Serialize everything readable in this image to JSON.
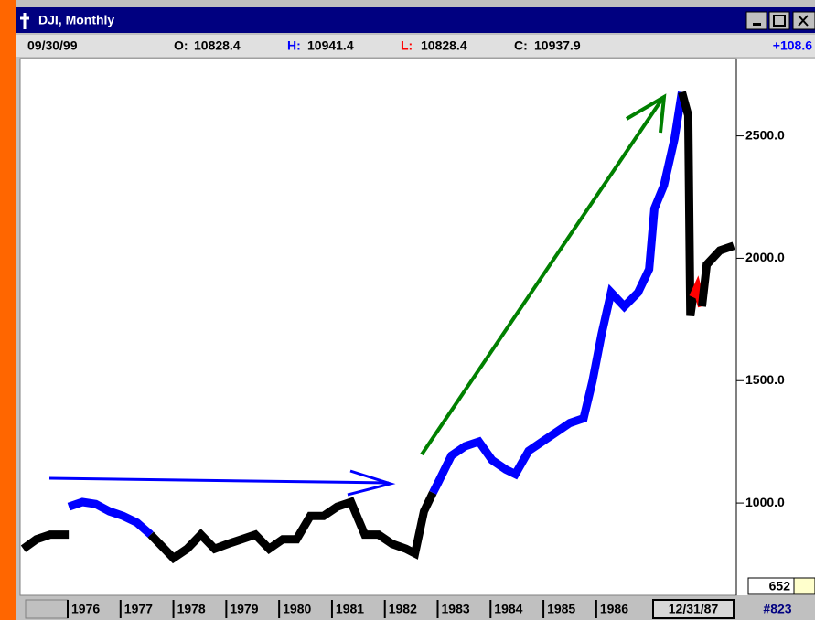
{
  "window": {
    "title": "DJI, Monthly",
    "info": {
      "date": "09/30/99",
      "fields": [
        {
          "label": "O:",
          "value": "10828.4",
          "color": "#000000"
        },
        {
          "label": "H:",
          "value": "10941.4",
          "color": "#0000ff"
        },
        {
          "label": "L:",
          "value": "10828.4",
          "color": "#ff0000"
        },
        {
          "label": "C:",
          "value": "10937.9",
          "color": "#000000"
        }
      ],
      "change": "+108.6"
    }
  },
  "chart_data": {
    "type": "line",
    "xlim": [
      1975.1,
      1988.65
    ],
    "xticks": [
      {
        "value": 1976,
        "label": "1976"
      },
      {
        "value": 1977,
        "label": "1977"
      },
      {
        "value": 1978,
        "label": "1978"
      },
      {
        "value": 1979,
        "label": "1979"
      },
      {
        "value": 1980,
        "label": "1980"
      },
      {
        "value": 1981,
        "label": "1981"
      },
      {
        "value": 1982,
        "label": "1982"
      },
      {
        "value": 1983,
        "label": "1983"
      },
      {
        "value": 1984,
        "label": "1984"
      },
      {
        "value": 1985,
        "label": "1985"
      },
      {
        "value": 1986,
        "label": "1986"
      }
    ],
    "ylim": [
      623,
      2816
    ],
    "yticks": [
      {
        "value": 1000,
        "label": "1000.0"
      },
      {
        "value": 1500,
        "label": "1500.0"
      },
      {
        "value": 2000,
        "label": "2000.0"
      },
      {
        "value": 2500,
        "label": "2500.0"
      }
    ],
    "series": [
      {
        "color": "#000000",
        "x": [
          1975.16,
          1975.41,
          1975.67,
          1976.02
        ],
        "values": [
          813,
          852,
          871,
          871
        ]
      },
      {
        "color": "#0000ff",
        "x": [
          1976.02,
          1976.28,
          1976.53,
          1976.79,
          1977.05,
          1977.31,
          1977.57
        ],
        "values": [
          985,
          1004,
          996,
          966,
          947,
          920,
          871
        ]
      },
      {
        "color": "#000000",
        "x": [
          1977.57,
          1977.74,
          1978.0,
          1978.26,
          1978.52,
          1978.78,
          1979.03,
          1979.29,
          1979.55,
          1979.81,
          1980.07,
          1980.33,
          1980.59,
          1980.84,
          1981.1,
          1981.36,
          1981.62,
          1981.88,
          1982.14,
          1982.4,
          1982.57,
          1982.74,
          1982.91
        ],
        "values": [
          871,
          833,
          775,
          813,
          871,
          813,
          833,
          852,
          871,
          813,
          852,
          852,
          947,
          947,
          985,
          1004,
          871,
          871,
          833,
          813,
          794,
          966,
          1042
        ]
      },
      {
        "color": "#0000ff",
        "x": [
          1982.91,
          1983.0,
          1983.26,
          1983.52,
          1983.78,
          1984.03,
          1984.29,
          1984.47,
          1984.72,
          1984.98,
          1985.24,
          1985.5,
          1985.76,
          1985.93,
          1986.1,
          1986.28,
          1986.53,
          1986.79,
          1987.0,
          1987.1,
          1987.28,
          1987.48,
          1987.62
        ],
        "values": [
          1042,
          1080,
          1194,
          1232,
          1251,
          1175,
          1137,
          1118,
          1213,
          1251,
          1289,
          1327,
          1346,
          1499,
          1689,
          1860,
          1803,
          1860,
          1955,
          2203,
          2298,
          2488,
          2679
        ]
      },
      {
        "color": "#000000",
        "x": [
          1987.62,
          1987.74,
          1987.78,
          1987.83
        ],
        "values": [
          2679,
          2584,
          1765,
          1841
        ]
      },
      {
        "color": "#ff0000",
        "x": [
          1987.83,
          1987.91,
          1988.0
        ],
        "values": [
          1841,
          1879,
          1803
        ]
      },
      {
        "color": "#000000",
        "x": [
          1988.0,
          1988.09,
          1988.34,
          1988.6
        ],
        "values": [
          1803,
          1974,
          2032,
          2051
        ]
      }
    ]
  },
  "footer": {
    "cursor_date": "12/31/87",
    "bar_number": "#823",
    "low_box": "652"
  }
}
